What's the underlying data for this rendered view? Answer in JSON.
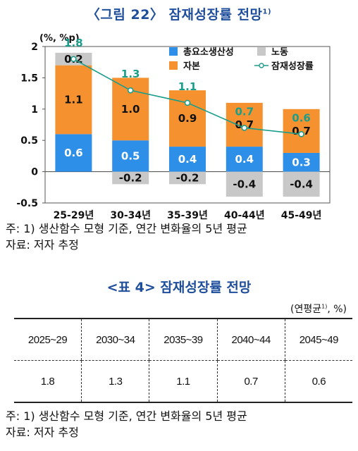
{
  "figure": {
    "title": "〈그림 22〉 잠재성장률 전망",
    "title_sup": "1)",
    "note": "주: 1) 생산함수 모형 기준, 연간 변화율의 5년 평균",
    "source": "자료: 저자 추정"
  },
  "chart_data": {
    "type": "bar",
    "stacked": true,
    "ylabel": "(%, %p)",
    "ylim": [
      -0.5,
      2
    ],
    "yticks": [
      "-0.5",
      "0",
      "0.5",
      "1",
      "1.5",
      "2"
    ],
    "categories": [
      "25-29년",
      "30-34년",
      "35-39년",
      "40-44년",
      "45-49년"
    ],
    "series": [
      {
        "name": "총요소생산성",
        "kind": "bar",
        "color": "#2e8fe8",
        "values": [
          0.6,
          0.5,
          0.4,
          0.4,
          0.3
        ],
        "labels": [
          "0.6",
          "0.5",
          "0.4",
          "0.4",
          "0.3"
        ]
      },
      {
        "name": "자본",
        "kind": "bar",
        "color": "#f5922f",
        "values": [
          1.1,
          1.0,
          0.9,
          0.7,
          0.7
        ],
        "labels": [
          "1.1",
          "1.0",
          "0.9",
          "0.7",
          "0.7"
        ]
      },
      {
        "name": "노동",
        "kind": "bar",
        "color": "#c8c8c8",
        "values": [
          0.2,
          -0.2,
          -0.2,
          -0.4,
          -0.4
        ],
        "labels": [
          "0.2",
          "-0.2",
          "-0.2",
          "-0.4",
          "-0.4"
        ]
      },
      {
        "name": "잠재성장률",
        "kind": "line",
        "color": "#1a9e8c",
        "values": [
          1.8,
          1.3,
          1.1,
          0.7,
          0.6
        ],
        "labels": [
          "1.8",
          "1.3",
          "1.1",
          "0.7",
          "0.6"
        ]
      }
    ],
    "legend_position": "top-right",
    "grid": false
  },
  "table": {
    "title": "<표 4> 잠재성장률 전망",
    "unit": "(연평균",
    "unit_sup": "1)",
    "unit_tail": ", %)",
    "headers": [
      "2025~29",
      "2030~34",
      "2035~39",
      "2040~44",
      "2045~49"
    ],
    "values": [
      "1.8",
      "1.3",
      "1.1",
      "0.7",
      "0.6"
    ],
    "note": "주: 1) 생산함수 모형 기준, 연간 변화율의 5년 평균",
    "source": "자료: 저자 추정"
  }
}
